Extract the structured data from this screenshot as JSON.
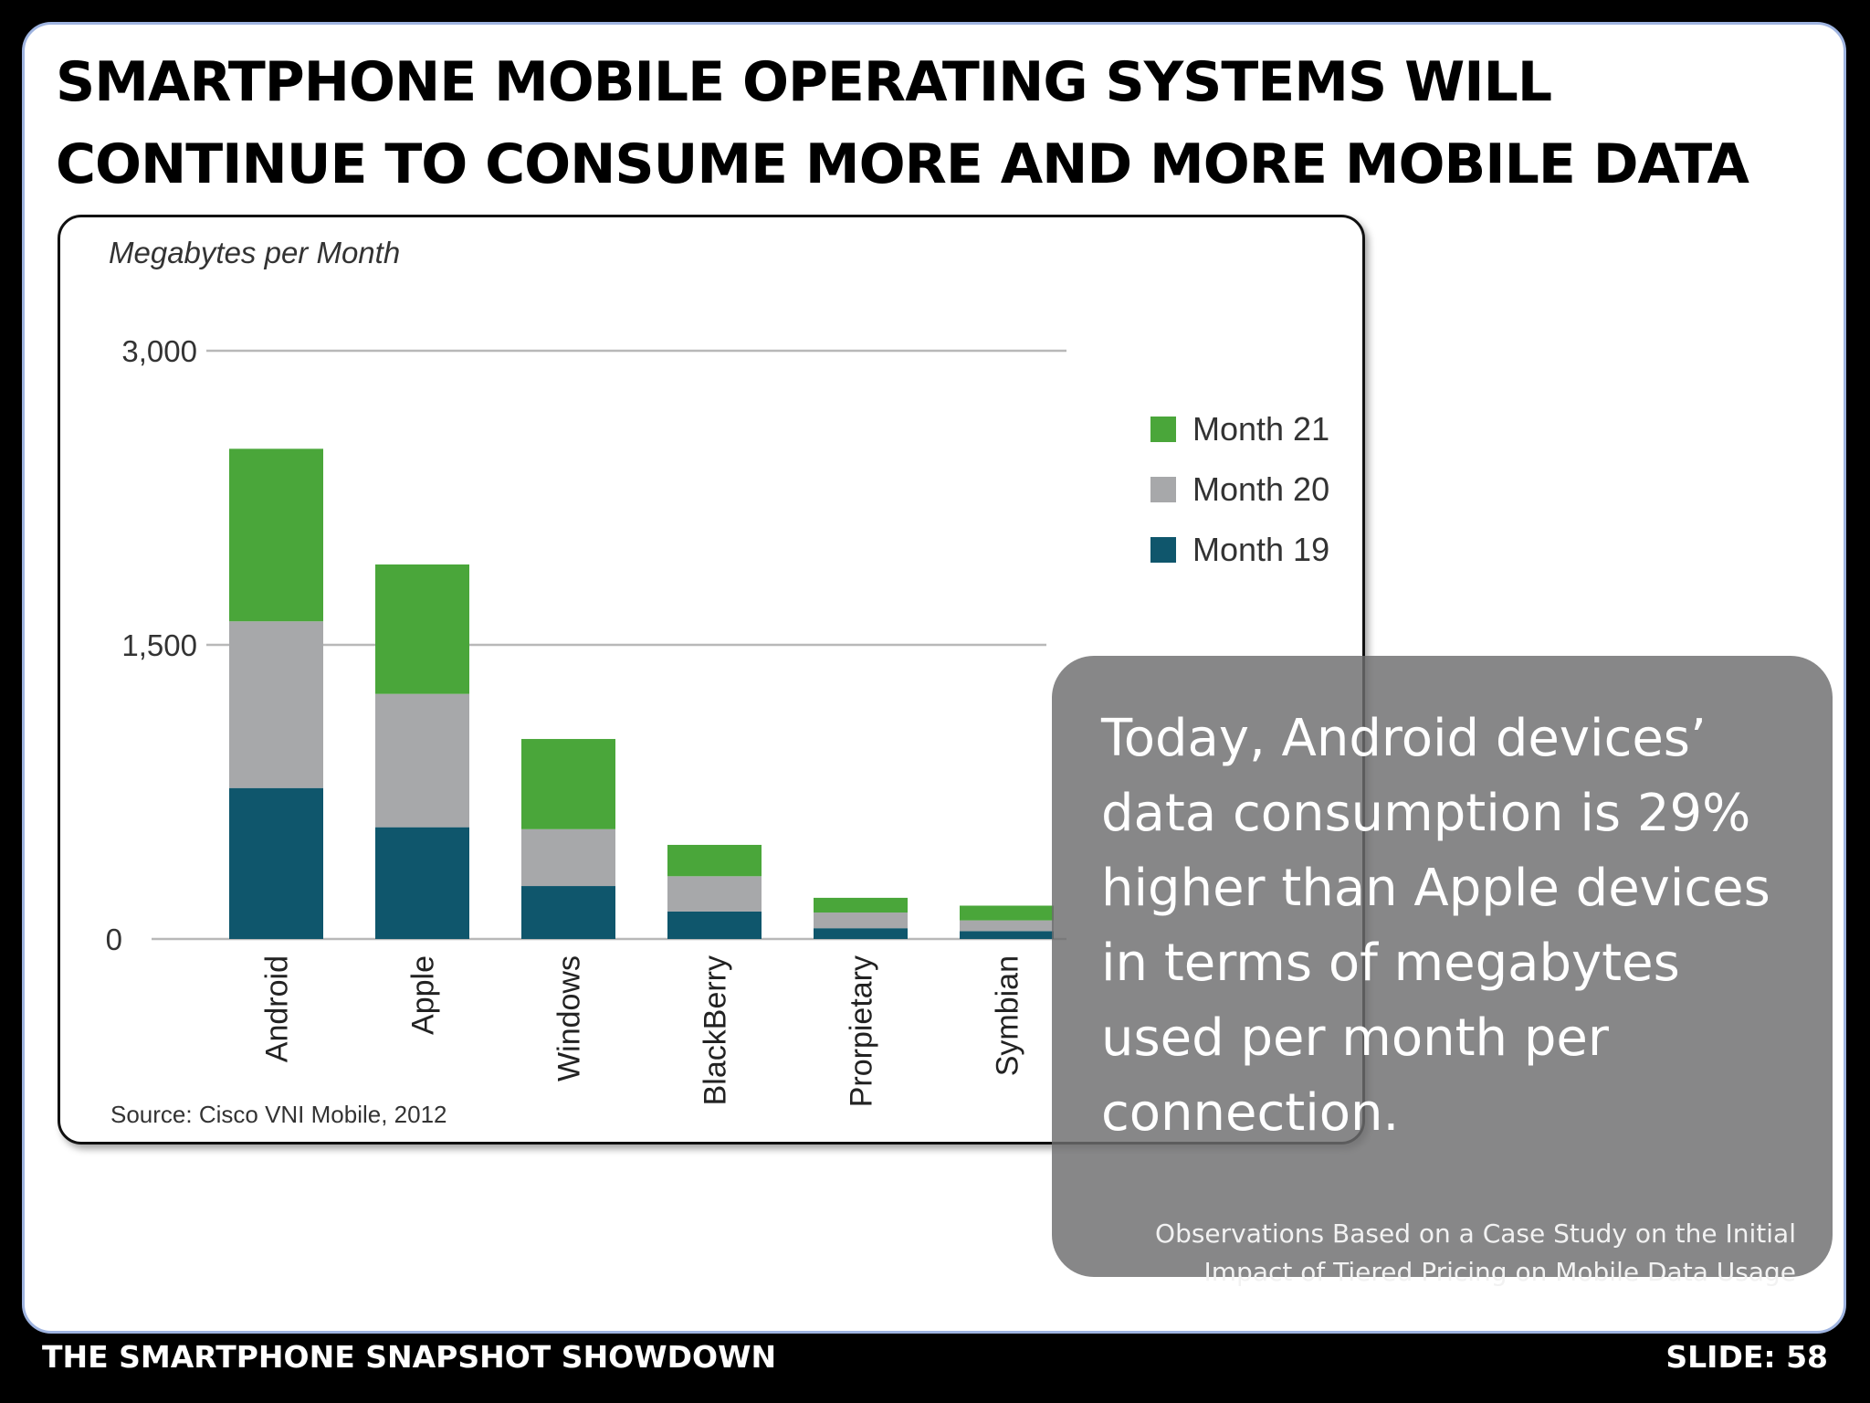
{
  "slide": {
    "title_line1": "SMARTPHONE MOBILE OPERATING SYSTEMS WILL",
    "title_line2": "CONTINUE TO CONSUME MORE AND MORE MOBILE DATA",
    "footer_left": "THE SMARTPHONE SNAPSHOT SHOWDOWN",
    "footer_right": "SLIDE: 58"
  },
  "overlay": {
    "main_text": "Today, Android devices’ data consumption is 29% higher than Apple devices in terms of megabytes used per month per connection.",
    "note_line1": "Observations Based on a Case Study on the Initial",
    "note_line2": "Impact of Tiered Pricing on Mobile Data Usage"
  },
  "colors": {
    "month21": "#4aa63a",
    "month20": "#a7a8aa",
    "month19": "#0f566c"
  },
  "chart_data": {
    "type": "bar",
    "stacked": true,
    "title": "",
    "ylabel": "Megabytes per Month",
    "xlabel": "",
    "categories": [
      "Android",
      "Apple",
      "Windows",
      "BlackBerry",
      "Prorpietary",
      "Symbian"
    ],
    "series": [
      {
        "name": "Month 19",
        "values": [
          770,
          570,
          270,
          140,
          55,
          40
        ]
      },
      {
        "name": "Month 20",
        "values": [
          850,
          680,
          290,
          180,
          80,
          55
        ]
      },
      {
        "name": "Month 21",
        "values": [
          880,
          660,
          460,
          160,
          75,
          75
        ]
      }
    ],
    "ylim": [
      0,
      3000
    ],
    "yticks": [
      0,
      1500,
      3000
    ],
    "ytick_labels": [
      "0",
      "1,500",
      "3,000"
    ],
    "grid": true,
    "legend": {
      "placement": "right",
      "order": [
        "Month 21",
        "Month 20",
        "Month 19"
      ]
    },
    "source": "Source: Cisco VNI Mobile, 2012"
  }
}
